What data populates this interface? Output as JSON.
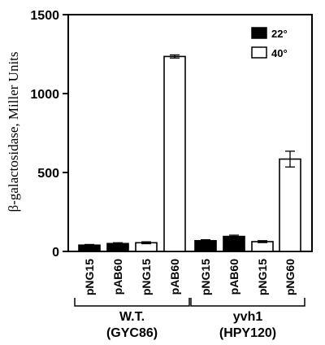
{
  "chart_data": {
    "type": "bar",
    "ylabel": "β-galactosidase, Miller Units",
    "ylim": [
      0,
      1500
    ],
    "yticks": [
      0,
      500,
      1000,
      1500
    ],
    "categories": [
      "pNG15",
      "pAB60",
      "pNG15",
      "pAB60",
      "pNG15",
      "pAB60",
      "pNG15",
      "pNG60"
    ],
    "values": [
      40,
      50,
      55,
      1235,
      68,
      95,
      62,
      585
    ],
    "errors": [
      4,
      5,
      6,
      10,
      6,
      8,
      6,
      50
    ],
    "condition": [
      "22°",
      "22°",
      "40°",
      "40°",
      "22°",
      "22°",
      "40°",
      "40°"
    ],
    "legend": {
      "position": "top-right",
      "entries": [
        {
          "label": "22°",
          "fill": "#000000"
        },
        {
          "label": "40°",
          "fill": "#ffffff"
        }
      ]
    },
    "groups": [
      {
        "line1": "W.T.",
        "line2": "(GYC86)",
        "members": [
          0,
          1,
          2,
          3
        ]
      },
      {
        "line1": "yvh1",
        "line2": "(HPY120)",
        "members": [
          4,
          5,
          6,
          7
        ]
      }
    ]
  }
}
